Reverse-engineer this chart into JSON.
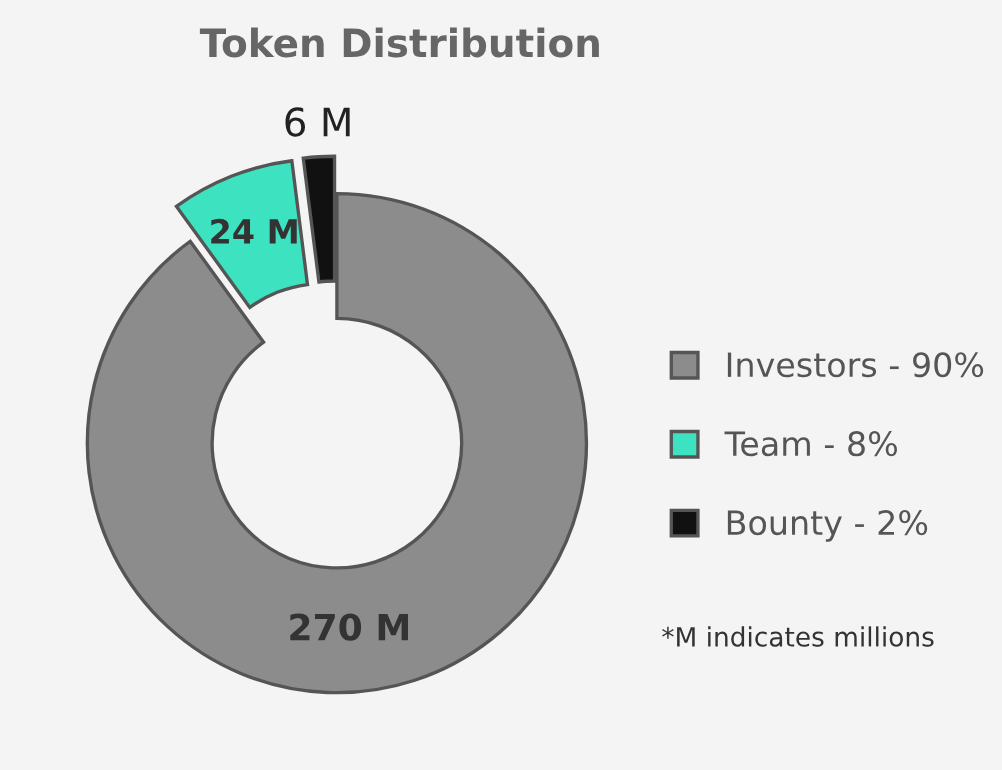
{
  "chart_data": {
    "type": "donut",
    "title": "Token Distribution",
    "categories": [
      "Investors - 90%",
      "Team - 8%",
      "Bounty - 2%"
    ],
    "values": [
      270,
      24,
      6
    ],
    "colors": [
      "#8c8c8c",
      "#3de3c1",
      "#111111"
    ],
    "value_labels": [
      "270 M",
      "24 M",
      "6 M"
    ],
    "legend": "right",
    "annotations": [
      "*M indicates millions"
    ]
  }
}
